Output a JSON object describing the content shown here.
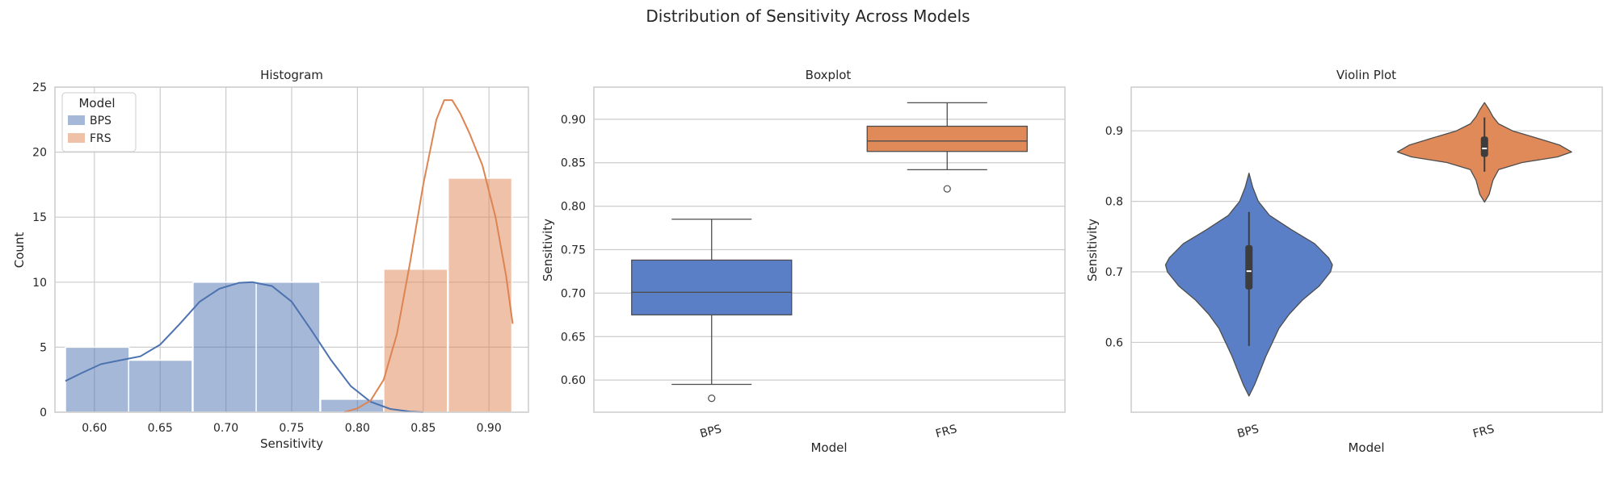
{
  "figure": {
    "title": "Distribution of Sensitivity Across Models"
  },
  "colors": {
    "BPS": "#4c72b0",
    "FRS": "#dd8452",
    "BPS_box": "#5b7fc7",
    "FRS_box": "#e08a5a",
    "grid": "#cccccc",
    "median_line": "#4d4d4d"
  },
  "chart_data": [
    {
      "type": "histogram",
      "title": "Histogram",
      "xlabel": "Sensitivity",
      "ylabel": "Count",
      "xlim": [
        0.57,
        0.93
      ],
      "ylim": [
        0,
        25
      ],
      "xticks": [
        0.6,
        0.65,
        0.7,
        0.75,
        0.8,
        0.85,
        0.9
      ],
      "xtick_labels": [
        "0.60",
        "0.65",
        "0.70",
        "0.75",
        "0.80",
        "0.85",
        "0.90"
      ],
      "yticks": [
        0,
        5,
        10,
        15,
        20,
        25
      ],
      "ytick_labels": [
        "0",
        "5",
        "10",
        "15",
        "20",
        "25"
      ],
      "legend": {
        "title": "Model",
        "placement": "top-left",
        "entries": [
          "BPS",
          "FRS"
        ]
      },
      "grid": true,
      "bin_width": 0.0484,
      "series": [
        {
          "name": "BPS",
          "bins": [
            {
              "start": 0.578,
              "count": 5
            },
            {
              "start": 0.626,
              "count": 4
            },
            {
              "start": 0.675,
              "count": 10
            },
            {
              "start": 0.723,
              "count": 10
            },
            {
              "start": 0.772,
              "count": 1
            }
          ],
          "kde": [
            [
              0.578,
              2.4
            ],
            [
              0.59,
              3.0
            ],
            [
              0.605,
              3.7
            ],
            [
              0.62,
              4.0
            ],
            [
              0.635,
              4.3
            ],
            [
              0.65,
              5.2
            ],
            [
              0.665,
              6.8
            ],
            [
              0.68,
              8.5
            ],
            [
              0.695,
              9.5
            ],
            [
              0.71,
              9.95
            ],
            [
              0.72,
              10.0
            ],
            [
              0.735,
              9.7
            ],
            [
              0.75,
              8.5
            ],
            [
              0.765,
              6.3
            ],
            [
              0.78,
              4.0
            ],
            [
              0.795,
              2.0
            ],
            [
              0.81,
              0.8
            ],
            [
              0.825,
              0.25
            ],
            [
              0.84,
              0.05
            ],
            [
              0.85,
              0.0
            ]
          ]
        },
        {
          "name": "FRS",
          "bins": [
            {
              "start": 0.772,
              "count": 0
            },
            {
              "start": 0.82,
              "count": 11
            },
            {
              "start": 0.869,
              "count": 18
            }
          ],
          "kde": [
            [
              0.79,
              0.0
            ],
            [
              0.8,
              0.3
            ],
            [
              0.81,
              0.9
            ],
            [
              0.82,
              2.5
            ],
            [
              0.83,
              6.0
            ],
            [
              0.84,
              11.5
            ],
            [
              0.85,
              17.5
            ],
            [
              0.86,
              22.5
            ],
            [
              0.866,
              24.0
            ],
            [
              0.872,
              24.0
            ],
            [
              0.878,
              23.0
            ],
            [
              0.885,
              21.5
            ],
            [
              0.895,
              19.0
            ],
            [
              0.905,
              15.0
            ],
            [
              0.913,
              10.5
            ],
            [
              0.918,
              6.8
            ]
          ]
        }
      ]
    },
    {
      "type": "box",
      "title": "Boxplot",
      "xlabel": "Model",
      "ylabel": "Sensitivity",
      "categories": [
        "BPS",
        "FRS"
      ],
      "ylim": [
        0.563,
        0.937
      ],
      "yticks": [
        0.6,
        0.65,
        0.7,
        0.75,
        0.8,
        0.85,
        0.9
      ],
      "ytick_labels": [
        "0.60",
        "0.65",
        "0.70",
        "0.75",
        "0.80",
        "0.85",
        "0.90"
      ],
      "grid": true,
      "boxes": [
        {
          "name": "BPS",
          "whislo": 0.595,
          "q1": 0.675,
          "med": 0.701,
          "q3": 0.738,
          "whishi": 0.785,
          "fliers": [
            0.579
          ]
        },
        {
          "name": "FRS",
          "whislo": 0.842,
          "q1": 0.863,
          "med": 0.875,
          "q3": 0.892,
          "whishi": 0.919,
          "fliers": [
            0.82
          ]
        }
      ]
    },
    {
      "type": "violin",
      "title": "Violin Plot",
      "xlabel": "Model",
      "ylabel": "Sensitivity",
      "categories": [
        "BPS",
        "FRS"
      ],
      "ylim": [
        0.501,
        0.962
      ],
      "yticks": [
        0.6,
        0.7,
        0.8,
        0.9
      ],
      "ytick_labels": [
        "0.6",
        "0.7",
        "0.8",
        "0.9"
      ],
      "grid": true,
      "violins": [
        {
          "name": "BPS",
          "profile": [
            [
              0.524,
              0.0
            ],
            [
              0.54,
              0.06
            ],
            [
              0.56,
              0.12
            ],
            [
              0.58,
              0.18
            ],
            [
              0.6,
              0.25
            ],
            [
              0.62,
              0.32
            ],
            [
              0.64,
              0.43
            ],
            [
              0.66,
              0.57
            ],
            [
              0.68,
              0.75
            ],
            [
              0.7,
              0.87
            ],
            [
              0.71,
              0.89
            ],
            [
              0.72,
              0.85
            ],
            [
              0.74,
              0.7
            ],
            [
              0.76,
              0.45
            ],
            [
              0.78,
              0.22
            ],
            [
              0.8,
              0.1
            ],
            [
              0.82,
              0.04
            ],
            [
              0.84,
              0.0
            ]
          ],
          "whislo": 0.595,
          "q1": 0.675,
          "med": 0.701,
          "q3": 0.738,
          "whishi": 0.785
        },
        {
          "name": "FRS",
          "profile": [
            [
              0.799,
              0.0
            ],
            [
              0.81,
              0.05
            ],
            [
              0.83,
              0.09
            ],
            [
              0.845,
              0.15
            ],
            [
              0.855,
              0.4
            ],
            [
              0.863,
              0.78
            ],
            [
              0.87,
              0.93
            ],
            [
              0.88,
              0.8
            ],
            [
              0.89,
              0.55
            ],
            [
              0.9,
              0.3
            ],
            [
              0.91,
              0.15
            ],
            [
              0.92,
              0.09
            ],
            [
              0.93,
              0.05
            ],
            [
              0.94,
              0.0
            ]
          ],
          "whislo": 0.842,
          "q1": 0.863,
          "med": 0.875,
          "q3": 0.892,
          "whishi": 0.919
        }
      ]
    }
  ]
}
